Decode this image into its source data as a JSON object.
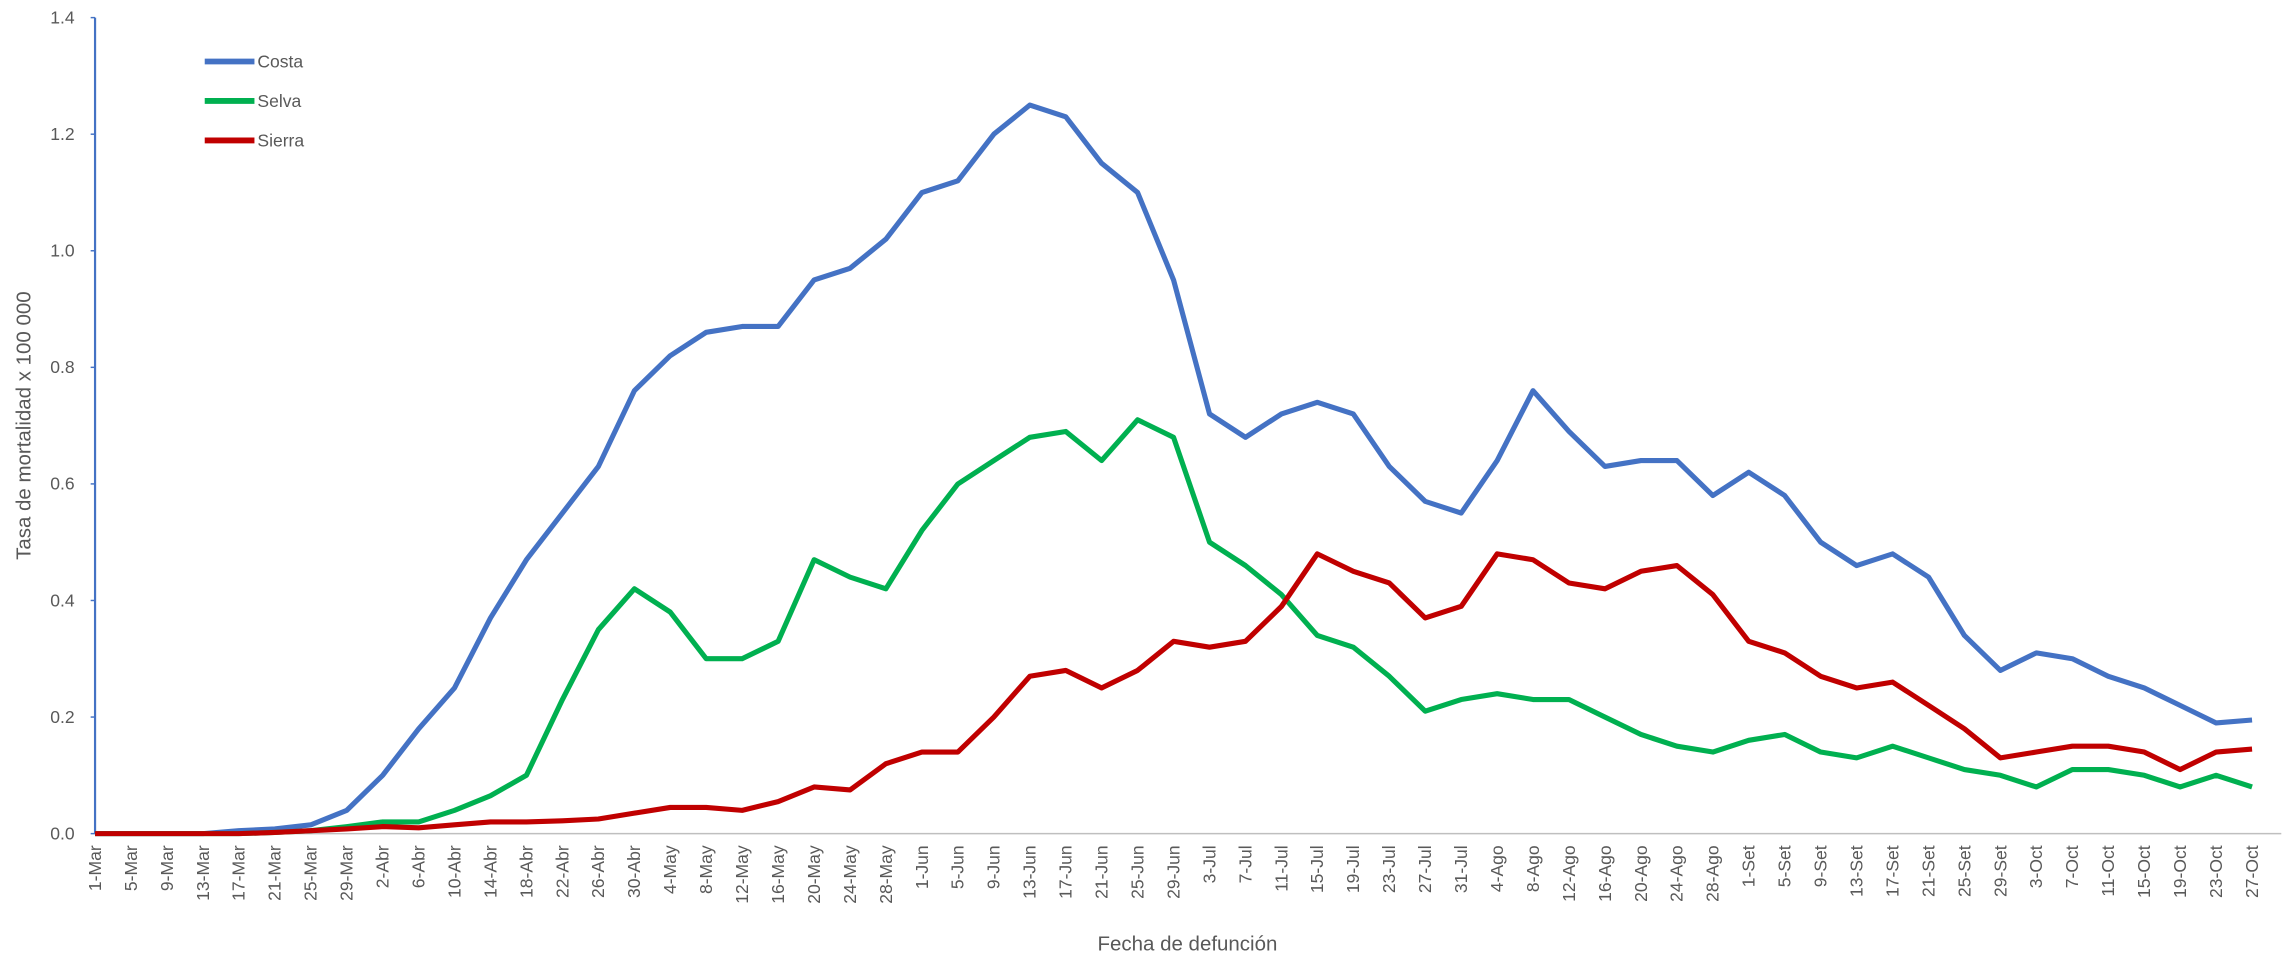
{
  "chart_data": {
    "type": "line",
    "ylabel": "Tasa de mortalidad  x 100 000",
    "xlabel": "Fecha de defunción",
    "categories": [
      "1-Mar",
      "5-Mar",
      "9-Mar",
      "13-Mar",
      "17-Mar",
      "21-Mar",
      "25-Mar",
      "29-Mar",
      "2-Abr",
      "6-Abr",
      "10-Abr",
      "14-Abr",
      "18-Abr",
      "22-Abr",
      "26-Abr",
      "30-Abr",
      "4-May",
      "8-May",
      "12-May",
      "16-May",
      "20-May",
      "24-May",
      "28-May",
      "1-Jun",
      "5-Jun",
      "9-Jun",
      "13-Jun",
      "17-Jun",
      "21-Jun",
      "25-Jun",
      "29-Jun",
      "3-Jul",
      "7-Jul",
      "11-Jul",
      "15-Jul",
      "19-Jul",
      "23-Jul",
      "27-Jul",
      "31-Jul",
      "4-Ago",
      "8-Ago",
      "12-Ago",
      "16-Ago",
      "20-Ago",
      "24-Ago",
      "28-Ago",
      "1-Set",
      "5-Set",
      "9-Set",
      "13-Set",
      "17-Set",
      "21-Set",
      "25-Set",
      "29-Set",
      "3-Oct",
      "7-Oct",
      "11-Oct",
      "15-Oct",
      "19-Oct",
      "23-Oct",
      "27-Oct"
    ],
    "series": [
      {
        "name": "Costa",
        "color": "#4472c4",
        "values": [
          0,
          0,
          0,
          0,
          0.005,
          0.008,
          0.015,
          0.04,
          0.1,
          0.18,
          0.25,
          0.37,
          0.47,
          0.55,
          0.63,
          0.76,
          0.82,
          0.86,
          0.87,
          0.87,
          0.95,
          0.97,
          1.02,
          1.1,
          1.12,
          1.2,
          1.25,
          1.23,
          1.15,
          1.1,
          0.95,
          0.72,
          0.68,
          0.72,
          0.74,
          0.72,
          0.63,
          0.57,
          0.55,
          0.64,
          0.76,
          0.69,
          0.63,
          0.64,
          0.64,
          0.58,
          0.62,
          0.58,
          0.5,
          0.46,
          0.48,
          0.44,
          0.34,
          0.28,
          0.31,
          0.3,
          0.27,
          0.25,
          0.22,
          0.19,
          0.195
        ]
      },
      {
        "name": "Selva",
        "color": "#00b050",
        "values": [
          0,
          0,
          0,
          0,
          0,
          0.002,
          0.005,
          0.012,
          0.02,
          0.02,
          0.04,
          0.065,
          0.1,
          0.23,
          0.35,
          0.42,
          0.38,
          0.3,
          0.3,
          0.33,
          0.47,
          0.44,
          0.42,
          0.52,
          0.6,
          0.64,
          0.68,
          0.69,
          0.64,
          0.71,
          0.68,
          0.5,
          0.46,
          0.41,
          0.34,
          0.32,
          0.27,
          0.21,
          0.23,
          0.24,
          0.23,
          0.23,
          0.2,
          0.17,
          0.15,
          0.14,
          0.16,
          0.17,
          0.14,
          0.13,
          0.15,
          0.13,
          0.11,
          0.1,
          0.08,
          0.11,
          0.11,
          0.1,
          0.08,
          0.1,
          0.08
        ]
      },
      {
        "name": "Sierra",
        "color": "#c00000",
        "values": [
          0,
          0,
          0,
          0,
          0,
          0.002,
          0.005,
          0.008,
          0.012,
          0.01,
          0.015,
          0.02,
          0.02,
          0.022,
          0.025,
          0.035,
          0.045,
          0.045,
          0.04,
          0.055,
          0.08,
          0.075,
          0.12,
          0.14,
          0.14,
          0.2,
          0.27,
          0.28,
          0.25,
          0.28,
          0.33,
          0.32,
          0.33,
          0.39,
          0.48,
          0.45,
          0.43,
          0.37,
          0.39,
          0.48,
          0.47,
          0.43,
          0.42,
          0.45,
          0.46,
          0.41,
          0.33,
          0.31,
          0.27,
          0.25,
          0.26,
          0.22,
          0.18,
          0.13,
          0.14,
          0.15,
          0.15,
          0.14,
          0.11,
          0.14,
          0.145
        ]
      }
    ],
    "ylim": [
      0,
      1.4
    ],
    "yticks": [
      {
        "value": 0,
        "label": "0.0"
      },
      0.2,
      0.4,
      0.6,
      0.8,
      {
        "value": 1,
        "label": "1.0"
      },
      1.2,
      1.4
    ],
    "grid": false,
    "legend": "upper left"
  }
}
